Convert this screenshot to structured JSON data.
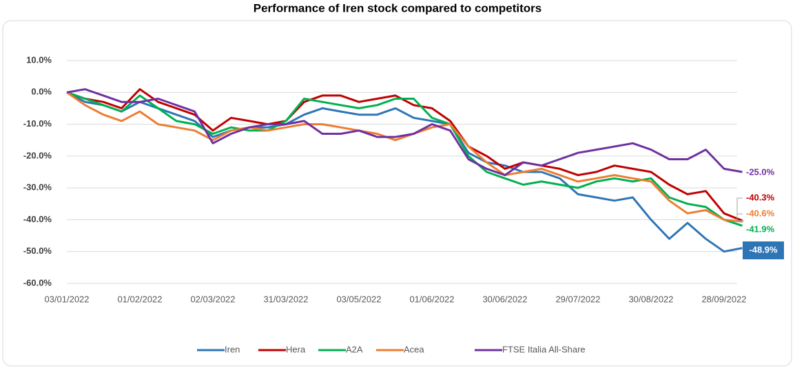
{
  "chart_data": {
    "type": "line",
    "title": "Performance of Iren stock compared to competitors",
    "x": [
      "03/01/2022",
      "10/01/2022",
      "17/01/2022",
      "24/01/2022",
      "01/02/2022",
      "08/02/2022",
      "15/02/2022",
      "22/02/2022",
      "02/03/2022",
      "09/03/2022",
      "16/03/2022",
      "23/03/2022",
      "31/03/2022",
      "08/04/2022",
      "19/04/2022",
      "26/04/2022",
      "03/05/2022",
      "10/05/2022",
      "17/05/2022",
      "24/05/2022",
      "01/06/2022",
      "08/06/2022",
      "15/06/2022",
      "22/06/2022",
      "30/06/2022",
      "07/07/2022",
      "14/07/2022",
      "21/07/2022",
      "29/07/2022",
      "05/08/2022",
      "12/08/2022",
      "22/08/2022",
      "30/08/2022",
      "06/09/2022",
      "13/09/2022",
      "20/09/2022",
      "28/09/2022",
      "30/09/2022"
    ],
    "xticks": [
      "03/01/2022",
      "01/02/2022",
      "02/03/2022",
      "31/03/2022",
      "03/05/2022",
      "01/06/2022",
      "30/06/2022",
      "29/07/2022",
      "30/08/2022",
      "28/09/2022"
    ],
    "ylim": [
      -60,
      10
    ],
    "yticks": [
      {
        "value": -60,
        "label": "-60.0%"
      },
      {
        "value": -50,
        "label": "-50.0%"
      },
      {
        "value": -40,
        "label": "-40.0%"
      },
      {
        "value": -30,
        "label": "-30.0%"
      },
      {
        "value": -20,
        "label": "-20.0%"
      },
      {
        "value": -10,
        "label": "-10.0%"
      },
      {
        "value": 0,
        "label": "0.0%"
      },
      {
        "value": 10,
        "label": "10.0%"
      }
    ],
    "grid": true,
    "legend": "bottom",
    "series": [
      {
        "name": "Iren",
        "color": "#2e75b6",
        "end_label": "-48.9%",
        "values": [
          0,
          -3,
          -4,
          -6,
          -3,
          -5,
          -7,
          -9,
          -14,
          -12,
          -11,
          -11,
          -10,
          -7,
          -5,
          -6,
          -7,
          -7,
          -5,
          -8,
          -9,
          -10,
          -19,
          -22,
          -23,
          -25,
          -25,
          -27,
          -32,
          -33,
          -34,
          -33,
          -40,
          -46,
          -41,
          -46,
          -50,
          -48.9
        ]
      },
      {
        "name": "Hera",
        "color": "#c00000",
        "end_label": "-40.3%",
        "values": [
          0,
          -2,
          -3,
          -5,
          1,
          -3,
          -5,
          -7,
          -12,
          -8,
          -9,
          -10,
          -9,
          -3,
          -1,
          -1,
          -3,
          -2,
          -1,
          -4,
          -5,
          -9,
          -17,
          -20,
          -24,
          -22,
          -23,
          -24,
          -26,
          -25,
          -23,
          -24,
          -25,
          -29,
          -32,
          -31,
          -38,
          -40.3
        ]
      },
      {
        "name": "A2A",
        "color": "#00b050",
        "end_label": "-41.9%",
        "values": [
          0,
          -2,
          -4,
          -6,
          -1,
          -5,
          -9,
          -10,
          -13,
          -11,
          -12,
          -12,
          -9,
          -2,
          -3,
          -4,
          -5,
          -4,
          -2,
          -2,
          -8,
          -10,
          -20,
          -25,
          -27,
          -29,
          -28,
          -29,
          -30,
          -28,
          -27,
          -28,
          -27,
          -33,
          -35,
          -36,
          -40,
          -41.9
        ]
      },
      {
        "name": "Acea",
        "color": "#ed7d31",
        "end_label": "-40.6%",
        "values": [
          0,
          -4,
          -7,
          -9,
          -6,
          -10,
          -11,
          -12,
          -15,
          -12,
          -11,
          -12,
          -11,
          -10,
          -10,
          -11,
          -12,
          -13,
          -15,
          -13,
          -11,
          -10,
          -17,
          -22,
          -26,
          -25,
          -24,
          -26,
          -28,
          -27,
          -26,
          -27,
          -28,
          -34,
          -38,
          -37,
          -40,
          -40.6
        ]
      },
      {
        "name": "FTSE Italia All-Share",
        "color": "#7030a0",
        "end_label": "-25.0%",
        "values": [
          0,
          1,
          -1,
          -3,
          -3,
          -2,
          -4,
          -6,
          -16,
          -13,
          -11,
          -10,
          -10,
          -9,
          -13,
          -13,
          -12,
          -14,
          -14,
          -13,
          -10,
          -12,
          -21,
          -24,
          -26,
          -22,
          -23,
          -21,
          -19,
          -18,
          -17,
          -16,
          -18,
          -21,
          -21,
          -18,
          -24,
          -25.0
        ]
      }
    ]
  }
}
